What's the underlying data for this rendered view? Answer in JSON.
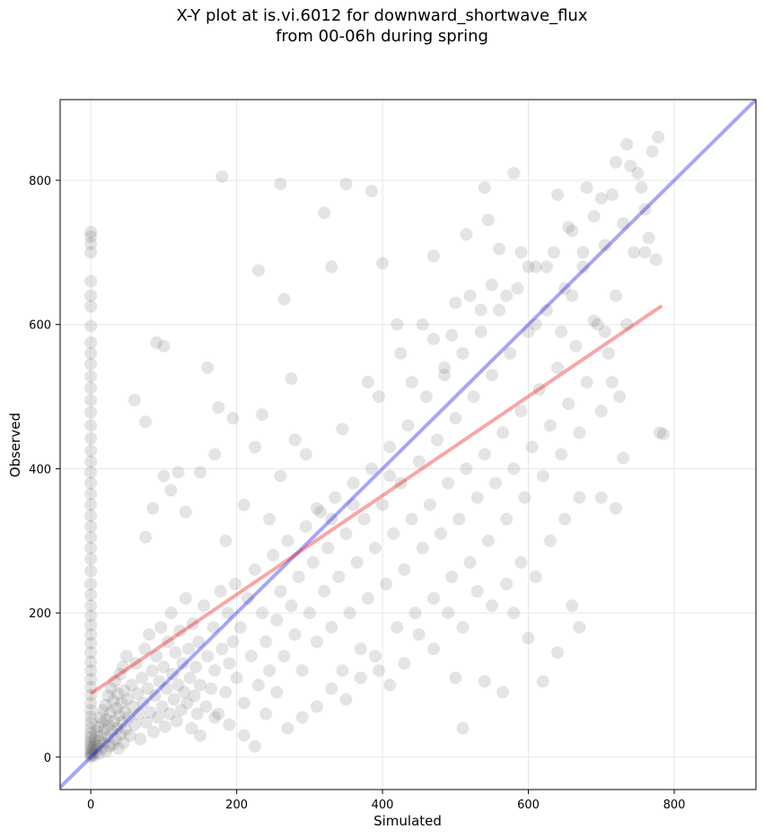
{
  "chart_data": {
    "type": "scatter",
    "title_line1": "X-Y plot at is.vi.6012 for downward_shortwave_flux",
    "title_line2": "from 00-06h during spring",
    "xlabel": "Simulated",
    "ylabel": "Observed",
    "xlim": [
      -42,
      912
    ],
    "ylim": [
      -45,
      912
    ],
    "xticks": [
      0,
      200,
      400,
      600,
      800
    ],
    "yticks": [
      0,
      200,
      400,
      600,
      800
    ],
    "grid": true,
    "colors": {
      "points": "#555555",
      "one_to_one": "#0000ee",
      "fit_line": "#ee0000"
    },
    "one_to_one_line": {
      "x": [
        -42,
        912
      ],
      "y": [
        -42,
        912
      ]
    },
    "fit_line": {
      "x": [
        0,
        783
      ],
      "y": [
        88,
        626
      ]
    },
    "zero_sim_points": {
      "x": 0,
      "y": [
        0,
        3,
        6,
        10,
        14,
        18,
        22,
        27,
        33,
        40,
        48,
        56,
        65,
        75,
        86,
        97,
        108,
        120,
        132,
        145,
        158,
        170,
        183,
        196,
        210,
        225,
        240,
        258,
        275,
        290,
        305,
        320,
        335,
        350,
        365,
        380,
        395,
        410,
        425,
        442,
        460,
        478,
        495,
        512,
        528,
        545,
        560,
        575,
        598,
        625,
        640,
        660,
        700,
        712,
        722,
        728
      ]
    },
    "cloud_points": [
      [
        2,
        4
      ],
      [
        3,
        10
      ],
      [
        4,
        2
      ],
      [
        5,
        18
      ],
      [
        6,
        25
      ],
      [
        7,
        8
      ],
      [
        8,
        35
      ],
      [
        9,
        15
      ],
      [
        10,
        42
      ],
      [
        11,
        5
      ],
      [
        12,
        22
      ],
      [
        13,
        55
      ],
      [
        14,
        30
      ],
      [
        15,
        12
      ],
      [
        16,
        48
      ],
      [
        17,
        65
      ],
      [
        18,
        20
      ],
      [
        19,
        38
      ],
      [
        20,
        72
      ],
      [
        21,
        8
      ],
      [
        22,
        52
      ],
      [
        23,
        28
      ],
      [
        24,
        85
      ],
      [
        25,
        44
      ],
      [
        26,
        15
      ],
      [
        27,
        62
      ],
      [
        28,
        95
      ],
      [
        29,
        36
      ],
      [
        30,
        18
      ],
      [
        31,
        78
      ],
      [
        32,
        50
      ],
      [
        33,
        105
      ],
      [
        34,
        25
      ],
      [
        35,
        68
      ],
      [
        36,
        40
      ],
      [
        37,
        88
      ],
      [
        38,
        12
      ],
      [
        39,
        58
      ],
      [
        40,
        115
      ],
      [
        41,
        32
      ],
      [
        42,
        75
      ],
      [
        43,
        48
      ],
      [
        44,
        125
      ],
      [
        45,
        20
      ],
      [
        46,
        92
      ],
      [
        47,
        62
      ],
      [
        48,
        38
      ],
      [
        49,
        140
      ],
      [
        50,
        80
      ],
      [
        52,
        55
      ],
      [
        54,
        30
      ],
      [
        56,
        100
      ],
      [
        58,
        70
      ],
      [
        60,
        45
      ],
      [
        62,
        130
      ],
      [
        64,
        88
      ],
      [
        66,
        60
      ],
      [
        68,
        25
      ],
      [
        70,
        110
      ],
      [
        72,
        75
      ],
      [
        74,
        150
      ],
      [
        76,
        48
      ],
      [
        78,
        95
      ],
      [
        80,
        170
      ],
      [
        82,
        62
      ],
      [
        84,
        120
      ],
      [
        86,
        35
      ],
      [
        88,
        85
      ],
      [
        90,
        140
      ],
      [
        92,
        55
      ],
      [
        94,
        105
      ],
      [
        96,
        180
      ],
      [
        98,
        70
      ],
      [
        100,
        125
      ],
      [
        102,
        42
      ],
      [
        104,
        95
      ],
      [
        106,
        160
      ],
      [
        108,
        60
      ],
      [
        110,
        200
      ],
      [
        112,
        115
      ],
      [
        114,
        80
      ],
      [
        116,
        145
      ],
      [
        118,
        50
      ],
      [
        120,
        100
      ],
      [
        122,
        175
      ],
      [
        124,
        65
      ],
      [
        126,
        130
      ],
      [
        128,
        90
      ],
      [
        130,
        220
      ],
      [
        132,
        75
      ],
      [
        134,
        150
      ],
      [
        136,
        110
      ],
      [
        138,
        40
      ],
      [
        140,
        185
      ],
      [
        142,
        85
      ],
      [
        144,
        125
      ],
      [
        146,
        60
      ],
      [
        148,
        160
      ],
      [
        150,
        100
      ],
      [
        155,
        210
      ],
      [
        158,
        70
      ],
      [
        160,
        140
      ],
      [
        165,
        95
      ],
      [
        168,
        180
      ],
      [
        170,
        120
      ],
      [
        175,
        60
      ],
      [
        178,
        230
      ],
      [
        180,
        150
      ],
      [
        185,
        90
      ],
      [
        188,
        200
      ],
      [
        190,
        130
      ],
      [
        195,
        160
      ],
      [
        198,
        240
      ],
      [
        200,
        110
      ],
      [
        205,
        180
      ],
      [
        210,
        75
      ],
      [
        215,
        220
      ],
      [
        220,
        140
      ],
      [
        225,
        260
      ],
      [
        230,
        100
      ],
      [
        235,
        200
      ],
      [
        240,
        160
      ],
      [
        245,
        120
      ],
      [
        250,
        280
      ],
      [
        255,
        190
      ],
      [
        260,
        230
      ],
      [
        265,
        140
      ],
      [
        270,
        300
      ],
      [
        275,
        210
      ],
      [
        280,
        170
      ],
      [
        285,
        250
      ],
      [
        290,
        120
      ],
      [
        295,
        320
      ],
      [
        300,
        200
      ],
      [
        305,
        270
      ],
      [
        310,
        160
      ],
      [
        315,
        340
      ],
      [
        320,
        230
      ],
      [
        325,
        290
      ],
      [
        330,
        180
      ],
      [
        335,
        360
      ],
      [
        340,
        250
      ],
      [
        345,
        120
      ],
      [
        350,
        310
      ],
      [
        355,
        200
      ],
      [
        360,
        380
      ],
      [
        365,
        270
      ],
      [
        370,
        150
      ],
      [
        375,
        330
      ],
      [
        380,
        220
      ],
      [
        385,
        400
      ],
      [
        390,
        290
      ],
      [
        395,
        120
      ],
      [
        400,
        350
      ],
      [
        405,
        240
      ],
      [
        410,
        430
      ],
      [
        415,
        310
      ],
      [
        420,
        180
      ],
      [
        425,
        380
      ],
      [
        430,
        260
      ],
      [
        435,
        460
      ],
      [
        440,
        330
      ],
      [
        445,
        200
      ],
      [
        450,
        410
      ],
      [
        455,
        290
      ],
      [
        460,
        500
      ],
      [
        465,
        350
      ],
      [
        470,
        220
      ],
      [
        475,
        440
      ],
      [
        480,
        310
      ],
      [
        485,
        530
      ],
      [
        490,
        380
      ],
      [
        495,
        250
      ],
      [
        500,
        470
      ],
      [
        505,
        330
      ],
      [
        510,
        560
      ],
      [
        515,
        400
      ],
      [
        520,
        270
      ],
      [
        525,
        500
      ],
      [
        530,
        360
      ],
      [
        535,
        590
      ],
      [
        540,
        420
      ],
      [
        545,
        300
      ],
      [
        550,
        530
      ],
      [
        555,
        380
      ],
      [
        560,
        620
      ],
      [
        565,
        450
      ],
      [
        570,
        330
      ],
      [
        575,
        560
      ],
      [
        580,
        400
      ],
      [
        585,
        650
      ],
      [
        590,
        480
      ],
      [
        595,
        360
      ],
      [
        600,
        590
      ],
      [
        605,
        430
      ],
      [
        610,
        680
      ],
      [
        615,
        510
      ],
      [
        620,
        390
      ],
      [
        625,
        620
      ],
      [
        630,
        460
      ],
      [
        635,
        700
      ],
      [
        640,
        540
      ],
      [
        645,
        420
      ],
      [
        650,
        650
      ],
      [
        655,
        490
      ],
      [
        660,
        730
      ],
      [
        665,
        570
      ],
      [
        670,
        450
      ],
      [
        675,
        680
      ],
      [
        680,
        520
      ],
      [
        690,
        750
      ],
      [
        695,
        600
      ],
      [
        700,
        480
      ],
      [
        705,
        710
      ],
      [
        710,
        560
      ],
      [
        715,
        780
      ],
      [
        720,
        640
      ],
      [
        725,
        500
      ],
      [
        730,
        740
      ],
      [
        735,
        600
      ],
      [
        740,
        820
      ],
      [
        745,
        700
      ],
      [
        750,
        810
      ],
      [
        755,
        790
      ],
      [
        760,
        760
      ],
      [
        765,
        720
      ],
      [
        770,
        840
      ],
      [
        775,
        690
      ],
      [
        778,
        860
      ],
      [
        780,
        450
      ],
      [
        60,
        495
      ],
      [
        75,
        465
      ],
      [
        90,
        575
      ],
      [
        100,
        570
      ],
      [
        120,
        395
      ],
      [
        160,
        540
      ],
      [
        175,
        485
      ],
      [
        180,
        805
      ],
      [
        195,
        470
      ],
      [
        230,
        675
      ],
      [
        235,
        475
      ],
      [
        260,
        795
      ],
      [
        265,
        635
      ],
      [
        275,
        525
      ],
      [
        320,
        755
      ],
      [
        330,
        680
      ],
      [
        350,
        795
      ],
      [
        385,
        785
      ],
      [
        400,
        685
      ],
      [
        420,
        600
      ],
      [
        470,
        695
      ],
      [
        495,
        585
      ],
      [
        515,
        725
      ],
      [
        540,
        790
      ],
      [
        545,
        745
      ],
      [
        560,
        705
      ],
      [
        580,
        810
      ],
      [
        600,
        680
      ],
      [
        640,
        780
      ],
      [
        655,
        735
      ],
      [
        680,
        790
      ],
      [
        700,
        775
      ],
      [
        720,
        825
      ],
      [
        735,
        850
      ],
      [
        510,
        40
      ],
      [
        500,
        110
      ],
      [
        540,
        105
      ],
      [
        565,
        90
      ],
      [
        580,
        200
      ],
      [
        600,
        165
      ],
      [
        620,
        105
      ],
      [
        640,
        145
      ],
      [
        660,
        210
      ],
      [
        670,
        180
      ],
      [
        700,
        360
      ],
      [
        720,
        345
      ],
      [
        730,
        415
      ],
      [
        760,
        700
      ],
      [
        785,
        448
      ],
      [
        75,
        305
      ],
      [
        85,
        345
      ],
      [
        100,
        390
      ],
      [
        110,
        370
      ],
      [
        130,
        340
      ],
      [
        150,
        395
      ],
      [
        170,
        420
      ],
      [
        185,
        300
      ],
      [
        210,
        350
      ],
      [
        225,
        430
      ],
      [
        245,
        330
      ],
      [
        260,
        390
      ],
      [
        280,
        440
      ],
      [
        295,
        420
      ],
      [
        310,
        345
      ],
      [
        330,
        330
      ],
      [
        345,
        455
      ],
      [
        360,
        350
      ],
      [
        380,
        520
      ],
      [
        395,
        500
      ],
      [
        410,
        390
      ],
      [
        425,
        560
      ],
      [
        440,
        520
      ],
      [
        455,
        600
      ],
      [
        470,
        580
      ],
      [
        485,
        540
      ],
      [
        500,
        630
      ],
      [
        520,
        640
      ],
      [
        535,
        620
      ],
      [
        550,
        655
      ],
      [
        570,
        640
      ],
      [
        590,
        700
      ],
      [
        610,
        600
      ],
      [
        625,
        680
      ],
      [
        645,
        590
      ],
      [
        660,
        640
      ],
      [
        675,
        700
      ],
      [
        690,
        605
      ],
      [
        705,
        590
      ],
      [
        715,
        520
      ],
      [
        150,
        30
      ],
      [
        170,
        55
      ],
      [
        190,
        45
      ],
      [
        210,
        30
      ],
      [
        225,
        15
      ],
      [
        240,
        60
      ],
      [
        255,
        90
      ],
      [
        270,
        40
      ],
      [
        290,
        55
      ],
      [
        310,
        70
      ],
      [
        330,
        95
      ],
      [
        350,
        80
      ],
      [
        370,
        110
      ],
      [
        390,
        140
      ],
      [
        410,
        100
      ],
      [
        430,
        130
      ],
      [
        450,
        170
      ],
      [
        470,
        150
      ],
      [
        490,
        200
      ],
      [
        510,
        180
      ],
      [
        530,
        230
      ],
      [
        550,
        210
      ],
      [
        570,
        240
      ],
      [
        590,
        270
      ],
      [
        610,
        250
      ],
      [
        630,
        300
      ],
      [
        650,
        330
      ],
      [
        670,
        360
      ]
    ]
  }
}
